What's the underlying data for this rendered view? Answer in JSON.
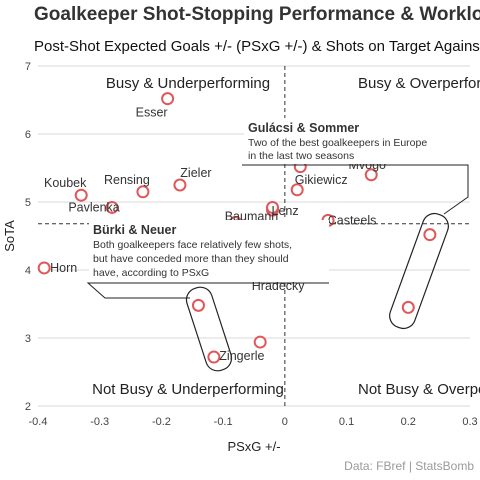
{
  "chart_data": {
    "type": "scatter",
    "title": "Goalkeeper Shot-Stopping  Performance & Workload",
    "subtitle": "Post-Shot  Expected Goals +/-  (PSxG +/-)  & Shots on Target Against",
    "xlabel": "PSxG +/-",
    "ylabel": "SoTA",
    "xlim": [
      -0.4,
      0.3
    ],
    "ylim": [
      2,
      7
    ],
    "x_ticks": [
      "-0.4",
      "-0.3",
      "-0.2",
      "-0.1",
      "0",
      "0.1",
      "0.2",
      "0.3"
    ],
    "y_ticks": [
      "2",
      "3",
      "4",
      "5",
      "6",
      "7"
    ],
    "grid": "horizontal",
    "reference_lines": {
      "x": 0,
      "y": 4.68
    },
    "point_color": "#e15759",
    "quadrants": {
      "top_left": "Busy & Underperforming",
      "top_right": "Busy & Overperforming",
      "bottom_left": "Not Busy & Underperforming",
      "bottom_right": "Not Busy & Overperforming"
    },
    "points": [
      {
        "x": -0.19,
        "y": 6.52,
        "label": "Esser"
      },
      {
        "x": -0.33,
        "y": 5.1,
        "label": "Koubek"
      },
      {
        "x": -0.23,
        "y": 5.15,
        "label": "Rensing"
      },
      {
        "x": -0.17,
        "y": 5.25,
        "label": "Zieler"
      },
      {
        "x": -0.28,
        "y": 4.92,
        "label": "Pavlenka"
      },
      {
        "x": -0.39,
        "y": 4.03,
        "label": "Horn"
      },
      {
        "x": -0.08,
        "y": 4.7,
        "label": "Baumann"
      },
      {
        "x": -0.02,
        "y": 4.88,
        "label": "Lenz"
      },
      {
        "x": -0.02,
        "y": 4.92,
        "label": ""
      },
      {
        "x": 0.025,
        "y": 5.52,
        "label": ""
      },
      {
        "x": 0.02,
        "y": 5.18,
        "label": "Gikiewicz"
      },
      {
        "x": 0.14,
        "y": 5.4,
        "label": "Mvogo"
      },
      {
        "x": 0.235,
        "y": 4.52,
        "label": ""
      },
      {
        "x": 0.2,
        "y": 3.45,
        "label": ""
      },
      {
        "x": -0.14,
        "y": 3.48,
        "label": ""
      },
      {
        "x": -0.115,
        "y": 2.72,
        "label": "Zingerle"
      },
      {
        "x": -0.04,
        "y": 2.94,
        "label": "Hradecky"
      },
      {
        "x": 0.07,
        "y": 4.73,
        "label": "Casteels"
      }
    ],
    "annotations": [
      {
        "title": "Gulácsi & Sommer",
        "lines": [
          "Two of the best goalkeepers in Europe",
          "in the last two seasons"
        ]
      },
      {
        "title": "Bürki & Neuer",
        "lines": [
          "Both goalkeepers face relatively few shots,",
          "but have conceded more than they should",
          "have, according to PSxG"
        ]
      }
    ],
    "caption": "Data: FBref | StatsBomb"
  }
}
